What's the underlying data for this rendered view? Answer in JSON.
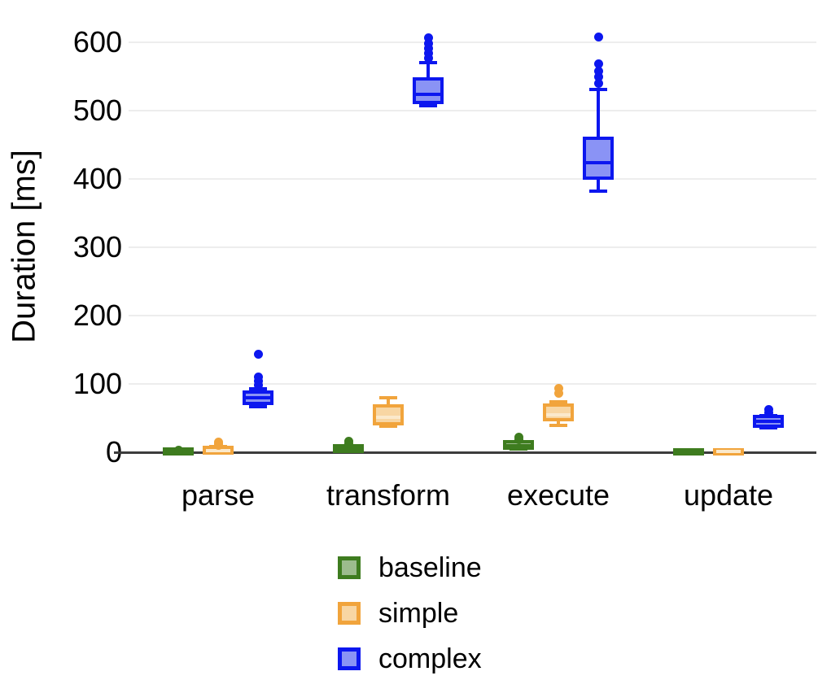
{
  "chart_data": {
    "type": "boxplot",
    "title": "",
    "xlabel": "",
    "ylabel": "Duration [ms]",
    "ylim": [
      0,
      620
    ],
    "yticks": [
      0,
      100,
      200,
      300,
      400,
      500,
      600
    ],
    "categories": [
      "parse",
      "transform",
      "execute",
      "update"
    ],
    "grid": true,
    "grid_color": "#ededed",
    "axis_color": "#3c3c3c",
    "legend_position": "bottom-left",
    "series": [
      {
        "name": "baseline",
        "border_color": "#3e7c1f",
        "fill_color": "#9cbc8d",
        "median_color": "#3e7c1f",
        "boxes": [
          {
            "category": "parse",
            "min": 0,
            "q1": 0.5,
            "median": 1,
            "q3": 2,
            "max": 3,
            "outliers": [
              1.5,
              3
            ]
          },
          {
            "category": "transform",
            "min": 1,
            "q1": 3,
            "median": 5,
            "q3": 7,
            "max": 10,
            "outliers": [
              13,
              16
            ]
          },
          {
            "category": "execute",
            "min": 5,
            "q1": 8,
            "median": 10,
            "q3": 13,
            "max": 16,
            "outliers": [
              19,
              22
            ]
          },
          {
            "category": "update",
            "min": 0,
            "q1": 0.3,
            "median": 0.7,
            "q3": 1.2,
            "max": 2,
            "outliers": []
          }
        ]
      },
      {
        "name": "simple",
        "border_color": "#f1a43c",
        "fill_color": "#f8d6a3",
        "median_color": "#fbe9cb",
        "boxes": [
          {
            "category": "parse",
            "min": 0,
            "q1": 1,
            "median": 2.5,
            "q3": 5,
            "max": 8,
            "outliers": [
              10,
              12,
              15
            ]
          },
          {
            "category": "transform",
            "min": 38,
            "q1": 44,
            "median": 51,
            "q3": 65,
            "max": 80,
            "outliers": []
          },
          {
            "category": "execute",
            "min": 39,
            "q1": 50,
            "median": 55,
            "q3": 67,
            "max": 74,
            "outliers": [
              86,
              94
            ]
          },
          {
            "category": "update",
            "min": 0,
            "q1": 0.3,
            "median": 0.7,
            "q3": 1.2,
            "max": 2,
            "outliers": []
          }
        ]
      },
      {
        "name": "complex",
        "border_color": "#0c17ef",
        "fill_color": "#8a93f5",
        "median_color": "#0c17ef",
        "boxes": [
          {
            "category": "parse",
            "min": 67,
            "q1": 74,
            "median": 80,
            "q3": 86,
            "max": 93,
            "outliers": [
              98,
              104,
              110,
              143
            ]
          },
          {
            "category": "transform",
            "min": 507,
            "q1": 514,
            "median": 524,
            "q3": 544,
            "max": 570,
            "outliers": [
              577,
              584,
              591,
              598,
              607
            ]
          },
          {
            "category": "execute",
            "min": 382,
            "q1": 404,
            "median": 424,
            "q3": 457,
            "max": 531,
            "outliers": [
              540,
              549,
              558,
              569,
              608
            ]
          },
          {
            "category": "update",
            "min": 36,
            "q1": 40,
            "median": 45,
            "q3": 50,
            "max": 53,
            "outliers": [
              58,
              62
            ]
          }
        ]
      }
    ],
    "legend": [
      {
        "label": "baseline"
      },
      {
        "label": "simple"
      },
      {
        "label": "complex"
      }
    ]
  }
}
